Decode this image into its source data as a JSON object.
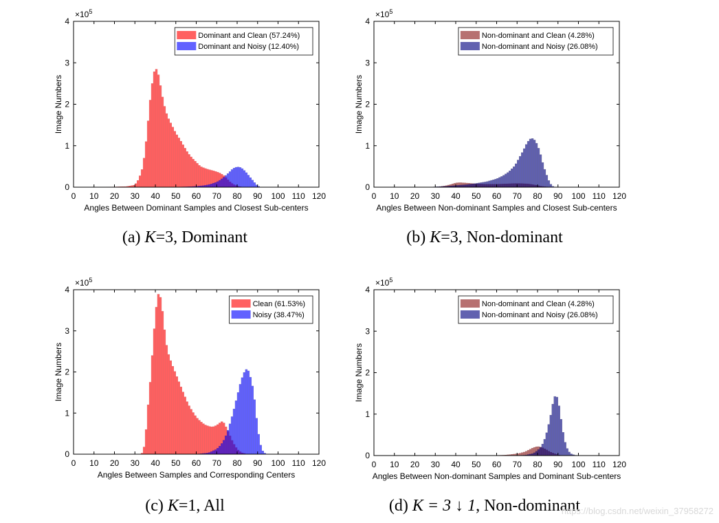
{
  "figure": {
    "watermark": "https://blog.csdn.net/weixin_37958272"
  },
  "chart_data": [
    {
      "type": "bar",
      "panel": "a",
      "caption": {
        "prefix": "(a)",
        "formula": "K",
        "rest": "=3, Dominant"
      },
      "xlabel": "Angles Between Dominant Samples and Closest Sub-centers",
      "ylabel": "Image Numbers",
      "exponent": "5",
      "xlim": [
        0,
        120
      ],
      "ylim": [
        0,
        4
      ],
      "xticks": [
        "0",
        "10",
        "20",
        "30",
        "40",
        "50",
        "60",
        "70",
        "80",
        "90",
        "100",
        "110",
        "120"
      ],
      "yticks": [
        "0",
        "1",
        "2",
        "3",
        "4"
      ],
      "legend_position": "top-right",
      "bin_width": 1,
      "series": [
        {
          "name": "Dominant and Clean (57.24%)",
          "color": "#ff0000",
          "edge": "#cc0000",
          "opacity": 0.62,
          "points": [
            [
              10,
              0
            ],
            [
              12,
              0.004
            ],
            [
              20,
              0.006
            ],
            [
              26,
              0.015
            ],
            [
              30,
              0.05
            ],
            [
              32,
              0.2
            ],
            [
              34,
              0.5
            ],
            [
              35,
              0.9
            ],
            [
              36,
              1.3
            ],
            [
              37,
              1.9
            ],
            [
              38,
              2.3
            ],
            [
              39,
              2.7
            ],
            [
              40,
              2.87
            ],
            [
              41,
              2.82
            ],
            [
              42,
              2.6
            ],
            [
              43,
              2.3
            ],
            [
              44,
              2.05
            ],
            [
              45,
              1.85
            ],
            [
              46,
              1.7
            ],
            [
              48,
              1.5
            ],
            [
              50,
              1.3
            ],
            [
              52,
              1.15
            ],
            [
              54,
              0.98
            ],
            [
              56,
              0.82
            ],
            [
              58,
              0.7
            ],
            [
              60,
              0.6
            ],
            [
              62,
              0.5
            ],
            [
              65,
              0.44
            ],
            [
              68,
              0.4
            ],
            [
              70,
              0.37
            ],
            [
              72,
              0.33
            ],
            [
              74,
              0.26
            ],
            [
              76,
              0.15
            ],
            [
              78,
              0.07
            ],
            [
              80,
              0.03
            ],
            [
              82,
              0.005
            ],
            [
              83,
              0
            ]
          ]
        },
        {
          "name": "Dominant and Noisy (12.40%)",
          "color": "#0000ff",
          "edge": "#0000aa",
          "opacity": 0.62,
          "points": [
            [
              50,
              0
            ],
            [
              52,
              0.005
            ],
            [
              56,
              0.01
            ],
            [
              60,
              0.02
            ],
            [
              64,
              0.04
            ],
            [
              67,
              0.07
            ],
            [
              70,
              0.12
            ],
            [
              72,
              0.18
            ],
            [
              74,
              0.26
            ],
            [
              76,
              0.35
            ],
            [
              78,
              0.45
            ],
            [
              80,
              0.49
            ],
            [
              82,
              0.47
            ],
            [
              84,
              0.38
            ],
            [
              86,
              0.26
            ],
            [
              88,
              0.14
            ],
            [
              89,
              0.08
            ],
            [
              90,
              0.03
            ],
            [
              91,
              0.01
            ],
            [
              92,
              0
            ]
          ]
        }
      ]
    },
    {
      "type": "bar",
      "panel": "b",
      "caption": {
        "prefix": "(b)",
        "formula": "K",
        "rest": "=3, Non-dominant"
      },
      "xlabel": "Angles Between Non-dominant Samples and Closest Sub-centers",
      "ylabel": "Image Numbers",
      "exponent": "5",
      "xlim": [
        0,
        120
      ],
      "ylim": [
        0,
        4
      ],
      "xticks": [
        "0",
        "10",
        "20",
        "30",
        "40",
        "50",
        "60",
        "70",
        "80",
        "90",
        "100",
        "110",
        "120"
      ],
      "yticks": [
        "0",
        "1",
        "2",
        "3",
        "4"
      ],
      "legend_position": "top-right",
      "bin_width": 1,
      "series": [
        {
          "name": "Non-dominant and Clean (4.28%)",
          "color": "#8b1a1a",
          "edge": "#6a0000",
          "opacity": 0.62,
          "points": [
            [
              30,
              0
            ],
            [
              32,
              0.01
            ],
            [
              35,
              0.03
            ],
            [
              38,
              0.07
            ],
            [
              40,
              0.1
            ],
            [
              42,
              0.11
            ],
            [
              45,
              0.1
            ],
            [
              50,
              0.08
            ],
            [
              55,
              0.07
            ],
            [
              60,
              0.07
            ],
            [
              65,
              0.08
            ],
            [
              70,
              0.09
            ],
            [
              75,
              0.08
            ],
            [
              78,
              0.06
            ],
            [
              80,
              0.04
            ],
            [
              82,
              0.02
            ],
            [
              84,
              0.01
            ],
            [
              86,
              0
            ]
          ]
        },
        {
          "name": "Non-dominant and Noisy (26.08%)",
          "color": "#000080",
          "edge": "#000050",
          "opacity": 0.62,
          "points": [
            [
              28,
              0
            ],
            [
              30,
              0.01
            ],
            [
              35,
              0.02
            ],
            [
              40,
              0.04
            ],
            [
              45,
              0.06
            ],
            [
              50,
              0.09
            ],
            [
              55,
              0.13
            ],
            [
              60,
              0.2
            ],
            [
              63,
              0.27
            ],
            [
              66,
              0.37
            ],
            [
              69,
              0.52
            ],
            [
              71,
              0.7
            ],
            [
              73,
              0.88
            ],
            [
              75,
              1.08
            ],
            [
              77,
              1.19
            ],
            [
              79,
              1.12
            ],
            [
              81,
              0.88
            ],
            [
              83,
              0.5
            ],
            [
              85,
              0.22
            ],
            [
              86,
              0.1
            ],
            [
              87,
              0.04
            ],
            [
              88,
              0
            ]
          ]
        }
      ]
    },
    {
      "type": "bar",
      "panel": "c",
      "caption": {
        "prefix": "(c)",
        "formula": "K",
        "rest": "=1, All"
      },
      "xlabel": "Angles Between Samples and Corresponding Centers",
      "ylabel": "Image Numbers",
      "exponent": "5",
      "xlim": [
        0,
        120
      ],
      "ylim": [
        0,
        4
      ],
      "xticks": [
        "0",
        "10",
        "20",
        "30",
        "40",
        "50",
        "60",
        "70",
        "80",
        "90",
        "100",
        "110",
        "120"
      ],
      "yticks": [
        "0",
        "1",
        "2",
        "3",
        "4"
      ],
      "legend_position": "top-right",
      "bin_width": 1,
      "series": [
        {
          "name": "Clean (61.53%)",
          "color": "#ff0000",
          "edge": "#cc0000",
          "opacity": 0.62,
          "points": [
            [
              33,
              0
            ],
            [
              34,
              0.05
            ],
            [
              35,
              0.3
            ],
            [
              36,
              0.9
            ],
            [
              37,
              1.5
            ],
            [
              38,
              2.0
            ],
            [
              39,
              2.8
            ],
            [
              40,
              3.3
            ],
            [
              41,
              3.85
            ],
            [
              42,
              3.93
            ],
            [
              43,
              3.7
            ],
            [
              44,
              3.25
            ],
            [
              45,
              2.8
            ],
            [
              46,
              2.5
            ],
            [
              48,
              2.2
            ],
            [
              50,
              1.95
            ],
            [
              52,
              1.7
            ],
            [
              54,
              1.45
            ],
            [
              56,
              1.22
            ],
            [
              58,
              1.05
            ],
            [
              60,
              0.9
            ],
            [
              62,
              0.8
            ],
            [
              64,
              0.72
            ],
            [
              66,
              0.68
            ],
            [
              68,
              0.66
            ],
            [
              70,
              0.7
            ],
            [
              72,
              0.78
            ],
            [
              73,
              0.8
            ],
            [
              74,
              0.72
            ],
            [
              76,
              0.5
            ],
            [
              78,
              0.28
            ],
            [
              80,
              0.12
            ],
            [
              82,
              0.04
            ],
            [
              84,
              0.01
            ],
            [
              85,
              0
            ]
          ]
        },
        {
          "name": "Noisy (38.47%)",
          "color": "#0000ff",
          "edge": "#0000aa",
          "opacity": 0.62,
          "points": [
            [
              60,
              0
            ],
            [
              62,
              0.01
            ],
            [
              66,
              0.03
            ],
            [
              70,
              0.12
            ],
            [
              72,
              0.22
            ],
            [
              74,
              0.38
            ],
            [
              76,
              0.65
            ],
            [
              78,
              1.0
            ],
            [
              80,
              1.4
            ],
            [
              82,
              1.8
            ],
            [
              84,
              2.05
            ],
            [
              85,
              2.07
            ],
            [
              86,
              1.98
            ],
            [
              88,
              1.55
            ],
            [
              89,
              1.1
            ],
            [
              90,
              0.65
            ],
            [
              91,
              0.32
            ],
            [
              92,
              0.12
            ],
            [
              93,
              0.04
            ],
            [
              94,
              0.01
            ],
            [
              95,
              0
            ]
          ]
        }
      ]
    },
    {
      "type": "bar",
      "panel": "d",
      "caption": {
        "prefix": "(d)",
        "formula": "K = 3 ↓ 1",
        "rest": ", Non-dominant"
      },
      "xlabel": "Angles Between Non-dominant Samples and Dominant Sub-centers",
      "ylabel": "Image Numbers",
      "exponent": "5",
      "xlim": [
        0,
        120
      ],
      "ylim": [
        0,
        4
      ],
      "xticks": [
        "0",
        "10",
        "20",
        "30",
        "40",
        "50",
        "60",
        "70",
        "80",
        "90",
        "100",
        "110",
        "120"
      ],
      "yticks": [
        "0",
        "1",
        "2",
        "3",
        "4"
      ],
      "legend_position": "top-right",
      "bin_width": 1,
      "series": [
        {
          "name": "Non-dominant and Clean (4.28%)",
          "color": "#8b1a1a",
          "edge": "#6a0000",
          "opacity": 0.62,
          "points": [
            [
              58,
              0
            ],
            [
              60,
              0.005
            ],
            [
              64,
              0.01
            ],
            [
              68,
              0.03
            ],
            [
              71,
              0.05
            ],
            [
              74,
              0.09
            ],
            [
              76,
              0.14
            ],
            [
              78,
              0.19
            ],
            [
              80,
              0.22
            ],
            [
              82,
              0.2
            ],
            [
              84,
              0.15
            ],
            [
              86,
              0.09
            ],
            [
              88,
              0.05
            ],
            [
              90,
              0.02
            ],
            [
              92,
              0
            ]
          ]
        },
        {
          "name": "Non-dominant and Noisy (26.08%)",
          "color": "#000080",
          "edge": "#000050",
          "opacity": 0.62,
          "points": [
            [
              70,
              0
            ],
            [
              74,
              0.01
            ],
            [
              78,
              0.05
            ],
            [
              80,
              0.12
            ],
            [
              82,
              0.22
            ],
            [
              84,
              0.45
            ],
            [
              86,
              0.85
            ],
            [
              87,
              1.1
            ],
            [
              88,
              1.38
            ],
            [
              89,
              1.47
            ],
            [
              90,
              1.35
            ],
            [
              91,
              1.05
            ],
            [
              92,
              0.7
            ],
            [
              93,
              0.42
            ],
            [
              94,
              0.22
            ],
            [
              95,
              0.12
            ],
            [
              96,
              0.05
            ],
            [
              98,
              0.01
            ],
            [
              100,
              0
            ]
          ]
        }
      ]
    }
  ]
}
